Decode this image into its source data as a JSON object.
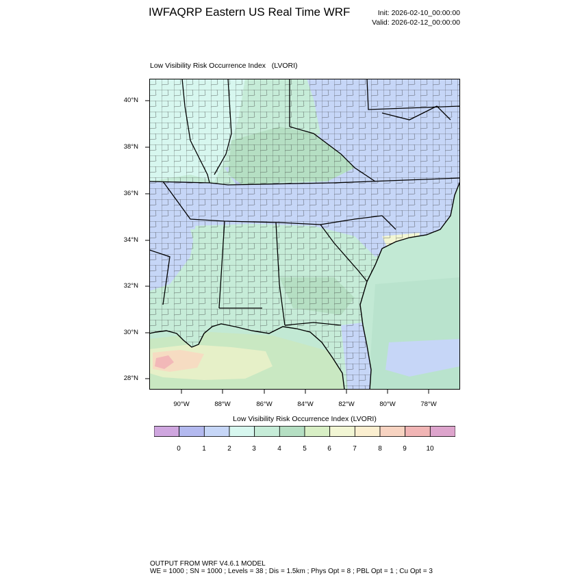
{
  "header": {
    "title": "IWFAQRP Eastern US Real Time WRF",
    "init": "Init: 2026-02-10_00:00:00",
    "valid": "Valid: 2026-02-12_00:00:00"
  },
  "map": {
    "subtitle": "Low Visibility Risk Occurrence Index   (LVORI)",
    "lat_labels": [
      "40°N",
      "38°N",
      "36°N",
      "34°N",
      "32°N",
      "30°N",
      "28°N"
    ],
    "lon_labels": [
      "90°W",
      "88°W",
      "86°W",
      "84°W",
      "82°W",
      "80°W",
      "78°W"
    ],
    "fill_colors": {
      "c1": "#b3b9ef",
      "c2": "#c6d6f7",
      "c3": "#d7f7ef",
      "c4": "#c6ecd8",
      "c5": "#b5dfc3",
      "c6": "#d8efc5",
      "c7": "#f2f6d4",
      "c8": "#fbefd0",
      "c9": "#f7d3c1",
      "c10": "#f1b5b5",
      "ocean": "#c2e9d4"
    }
  },
  "colorbar": {
    "title": "Low Visibility Risk Occurrence Index  (LVORI)",
    "labels": [
      "0",
      "1",
      "2",
      "3",
      "4",
      "5",
      "6",
      "7",
      "8",
      "9",
      "10"
    ],
    "colors": [
      "#cfa6df",
      "#b3b9ef",
      "#c6d6f7",
      "#d7f7ef",
      "#c6ecd8",
      "#b5dfc3",
      "#d8efc5",
      "#f2f6d4",
      "#fbefd0",
      "#f7d3c1",
      "#f1b5b5",
      "#dda4cc"
    ]
  },
  "footer": {
    "line1": "OUTPUT FROM WRF V4.6.1 MODEL",
    "line2": "WE = 1000 ; SN = 1000 ; Levels = 38 ; Dis = 1.5km ; Phys Opt = 8 ; PBL Opt = 1 ; Cu Opt = 3"
  }
}
